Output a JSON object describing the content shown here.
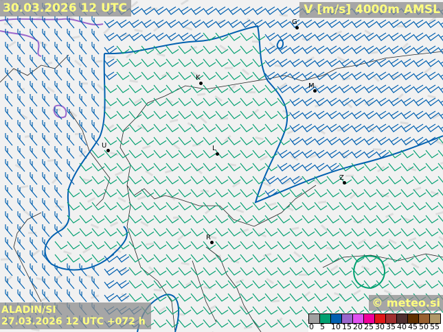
{
  "header": {
    "valid_time": "30.03.2026 12 UTC",
    "parameter": "V [m/s] 4000m AMSL"
  },
  "footer": {
    "model": "ALADIN/SI",
    "run": "27.03.2026 12 UTC +072 h",
    "copyright": "© meteo.si"
  },
  "legend": {
    "unit_ticks": [
      "0",
      "5",
      "10",
      "15",
      "20",
      "25",
      "30",
      "35",
      "40",
      "45",
      "50",
      "55"
    ],
    "colors": [
      "#a0a0a0",
      "#00a070",
      "#0060b0",
      "#9966cc",
      "#e050f0",
      "#f0009a",
      "#e01818",
      "#a03030",
      "#503030",
      "#603000",
      "#986030",
      "#b09868"
    ]
  },
  "cities": [
    {
      "label": "G"
    },
    {
      "label": "K"
    },
    {
      "label": "M"
    },
    {
      "label": "U"
    },
    {
      "label": "L"
    },
    {
      "label": "Z"
    },
    {
      "label": "R"
    }
  ],
  "barb_colors": {
    "weak": "#00a070",
    "strong": "#0060b0"
  },
  "contour_colors": {
    "10": "#0060b0",
    "15": "#9966cc",
    "5": "#00a070"
  }
}
